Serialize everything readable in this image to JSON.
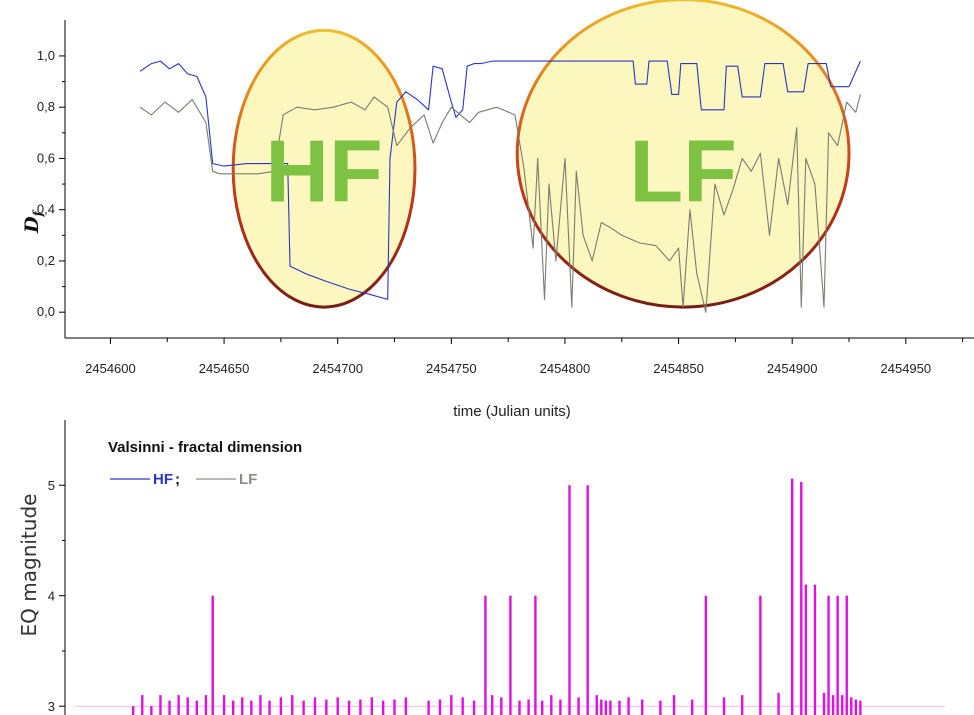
{
  "colors": {
    "hf": "#2a34c8",
    "lf": "#7c7c72",
    "eq": "#e010e0",
    "ellipse_fill": "#fbf6b8",
    "label": "#7dc243"
  },
  "chart_data": [
    {
      "type": "line",
      "ylabel": "D",
      "ylabel_sub": "f",
      "xlabel": "time (Julian units)",
      "xlim": [
        2454580,
        2454980
      ],
      "ylim": [
        -0.05,
        1.07
      ],
      "x_ticks": [
        2454600,
        2454650,
        2454700,
        2454750,
        2454800,
        2454850,
        2454900,
        2454950
      ],
      "x_tick_labels": [
        "2454600",
        "2454650",
        "2454700",
        "2454750",
        "2454800",
        "2454850",
        "2454900",
        "2454950"
      ],
      "y_ticks": [
        0.0,
        0.2,
        0.4,
        0.6,
        0.8,
        1.0
      ],
      "y_tick_labels": [
        "0,0",
        "0,2",
        "0,4",
        "0,6",
        "0,8",
        "1,0"
      ],
      "annotations": [
        {
          "text": "HF",
          "x": 2454694,
          "y": 0.55
        },
        {
          "text": "LF",
          "x": 2454852,
          "y": 0.55
        }
      ],
      "series": [
        {
          "name": "HF",
          "x": [
            2454613,
            2454618,
            2454622,
            2454626,
            2454630,
            2454634,
            2454638,
            2454642,
            2454645,
            2454650,
            2454660,
            2454670,
            2454678,
            2454679,
            2454686,
            2454695,
            2454705,
            2454714,
            2454722,
            2454723,
            2454726,
            2454730,
            2454735,
            2454740,
            2454742,
            2454746,
            2454750,
            2454752,
            2454755,
            2454757,
            2454760,
            2454763,
            2454768,
            2454780,
            2454800,
            2454820,
            2454830,
            2454831,
            2454836,
            2454837,
            2454845,
            2454847,
            2454850,
            2454851,
            2454858,
            2454860,
            2454870,
            2454871,
            2454876,
            2454878,
            2454886,
            2454888,
            2454896,
            2454898,
            2454905,
            2454907,
            2454915,
            2454917,
            2454925,
            2454930
          ],
          "y": [
            0.94,
            0.97,
            0.98,
            0.95,
            0.97,
            0.93,
            0.92,
            0.84,
            0.58,
            0.57,
            0.58,
            0.58,
            0.58,
            0.18,
            0.15,
            0.12,
            0.09,
            0.07,
            0.05,
            0.6,
            0.82,
            0.86,
            0.83,
            0.79,
            0.96,
            0.95,
            0.82,
            0.76,
            0.79,
            0.96,
            0.97,
            0.97,
            0.98,
            0.98,
            0.98,
            0.98,
            0.98,
            0.89,
            0.89,
            0.98,
            0.98,
            0.85,
            0.85,
            0.97,
            0.97,
            0.79,
            0.79,
            0.96,
            0.96,
            0.84,
            0.84,
            0.97,
            0.97,
            0.86,
            0.86,
            0.97,
            0.97,
            0.88,
            0.88,
            0.98
          ]
        },
        {
          "name": "LF",
          "x": [
            2454613,
            2454618,
            2454624,
            2454630,
            2454636,
            2454642,
            2454645,
            2454648,
            2454655,
            2454665,
            2454672,
            2454676,
            2454682,
            2454690,
            2454698,
            2454706,
            2454712,
            2454716,
            2454722,
            2454726,
            2454732,
            2454738,
            2454742,
            2454746,
            2454750,
            2454758,
            2454762,
            2454770,
            2454778,
            2454782,
            2454786,
            2454788,
            2454791,
            2454793,
            2454796,
            2454800,
            2454803,
            2454805,
            2454808,
            2454812,
            2454816,
            2454820,
            2454825,
            2454833,
            2454840,
            2454846,
            2454850,
            2454852,
            2454855,
            2454858,
            2454862,
            2454866,
            2454870,
            2454874,
            2454878,
            2454882,
            2454886,
            2454890,
            2454894,
            2454898,
            2454902,
            2454904,
            2454906,
            2454910,
            2454914,
            2454916,
            2454920,
            2454924,
            2454928,
            2454930
          ],
          "y": [
            0.8,
            0.77,
            0.82,
            0.78,
            0.83,
            0.74,
            0.55,
            0.54,
            0.54,
            0.54,
            0.55,
            0.77,
            0.8,
            0.79,
            0.8,
            0.82,
            0.79,
            0.84,
            0.8,
            0.65,
            0.72,
            0.77,
            0.66,
            0.74,
            0.8,
            0.74,
            0.78,
            0.8,
            0.77,
            0.56,
            0.25,
            0.6,
            0.05,
            0.5,
            0.2,
            0.6,
            0.02,
            0.55,
            0.3,
            0.2,
            0.35,
            0.33,
            0.3,
            0.27,
            0.26,
            0.2,
            0.25,
            0.02,
            0.4,
            0.15,
            0.0,
            0.5,
            0.38,
            0.48,
            0.6,
            0.55,
            0.62,
            0.3,
            0.6,
            0.42,
            0.72,
            0.02,
            0.6,
            0.5,
            0.02,
            0.7,
            0.65,
            0.82,
            0.78,
            0.85
          ]
        }
      ],
      "ellipses": [
        {
          "label": "HF",
          "cx": 2454694,
          "cy": 0.56,
          "rx_days": 40,
          "ry": 0.54
        },
        {
          "label": "LF",
          "cx": 2454852,
          "cy": 0.62,
          "rx_days": 73,
          "ry": 0.6
        }
      ]
    },
    {
      "type": "bar",
      "title": "Valsinni - fractal dimension",
      "ylabel": "EQ magnitude",
      "ylim": [
        2.92,
        5.5
      ],
      "xlim": [
        2454580,
        2454980
      ],
      "y_ticks": [
        3,
        4,
        5
      ],
      "y_tick_labels": [
        "3",
        "4",
        "5"
      ],
      "legend": [
        {
          "label": "HF",
          "color_key": "hf"
        },
        {
          "label": "LF",
          "color_key": "lf"
        }
      ],
      "legend_separator": ";",
      "events": {
        "x": [
          2454610,
          2454614,
          2454618,
          2454622,
          2454626,
          2454630,
          2454634,
          2454638,
          2454642,
          2454645,
          2454650,
          2454654,
          2454658,
          2454662,
          2454666,
          2454670,
          2454675,
          2454680,
          2454685,
          2454690,
          2454695,
          2454700,
          2454705,
          2454710,
          2454715,
          2454720,
          2454725,
          2454730,
          2454740,
          2454745,
          2454750,
          2454755,
          2454760,
          2454765,
          2454768,
          2454772,
          2454776,
          2454780,
          2454784,
          2454787,
          2454790,
          2454794,
          2454798,
          2454802,
          2454806,
          2454810,
          2454814,
          2454816,
          2454818,
          2454820,
          2454824,
          2454828,
          2454834,
          2454842,
          2454848,
          2454856,
          2454862,
          2454870,
          2454878,
          2454886,
          2454894,
          2454900,
          2454904,
          2454906,
          2454910,
          2454914,
          2454916,
          2454918,
          2454920,
          2454922,
          2454924,
          2454926,
          2454928,
          2454930
        ],
        "magnitude": [
          3.0,
          3.1,
          3.0,
          3.1,
          3.05,
          3.1,
          3.08,
          3.05,
          3.1,
          4.0,
          3.1,
          3.05,
          3.08,
          3.05,
          3.1,
          3.05,
          3.08,
          3.1,
          3.05,
          3.08,
          3.06,
          3.08,
          3.05,
          3.06,
          3.08,
          3.05,
          3.06,
          3.08,
          3.05,
          3.06,
          3.1,
          3.08,
          3.05,
          4.0,
          3.1,
          3.08,
          4.0,
          3.05,
          3.06,
          4.0,
          3.05,
          3.1,
          3.06,
          5.0,
          3.08,
          5.0,
          3.1,
          3.06,
          3.05,
          3.05,
          3.05,
          3.08,
          3.06,
          3.05,
          3.1,
          3.06,
          4.0,
          3.08,
          3.1,
          4.0,
          3.12,
          5.06,
          5.03,
          4.1,
          4.1,
          3.12,
          4.0,
          3.1,
          4.0,
          3.1,
          4.0,
          3.08,
          3.06,
          3.05
        ]
      }
    }
  ]
}
